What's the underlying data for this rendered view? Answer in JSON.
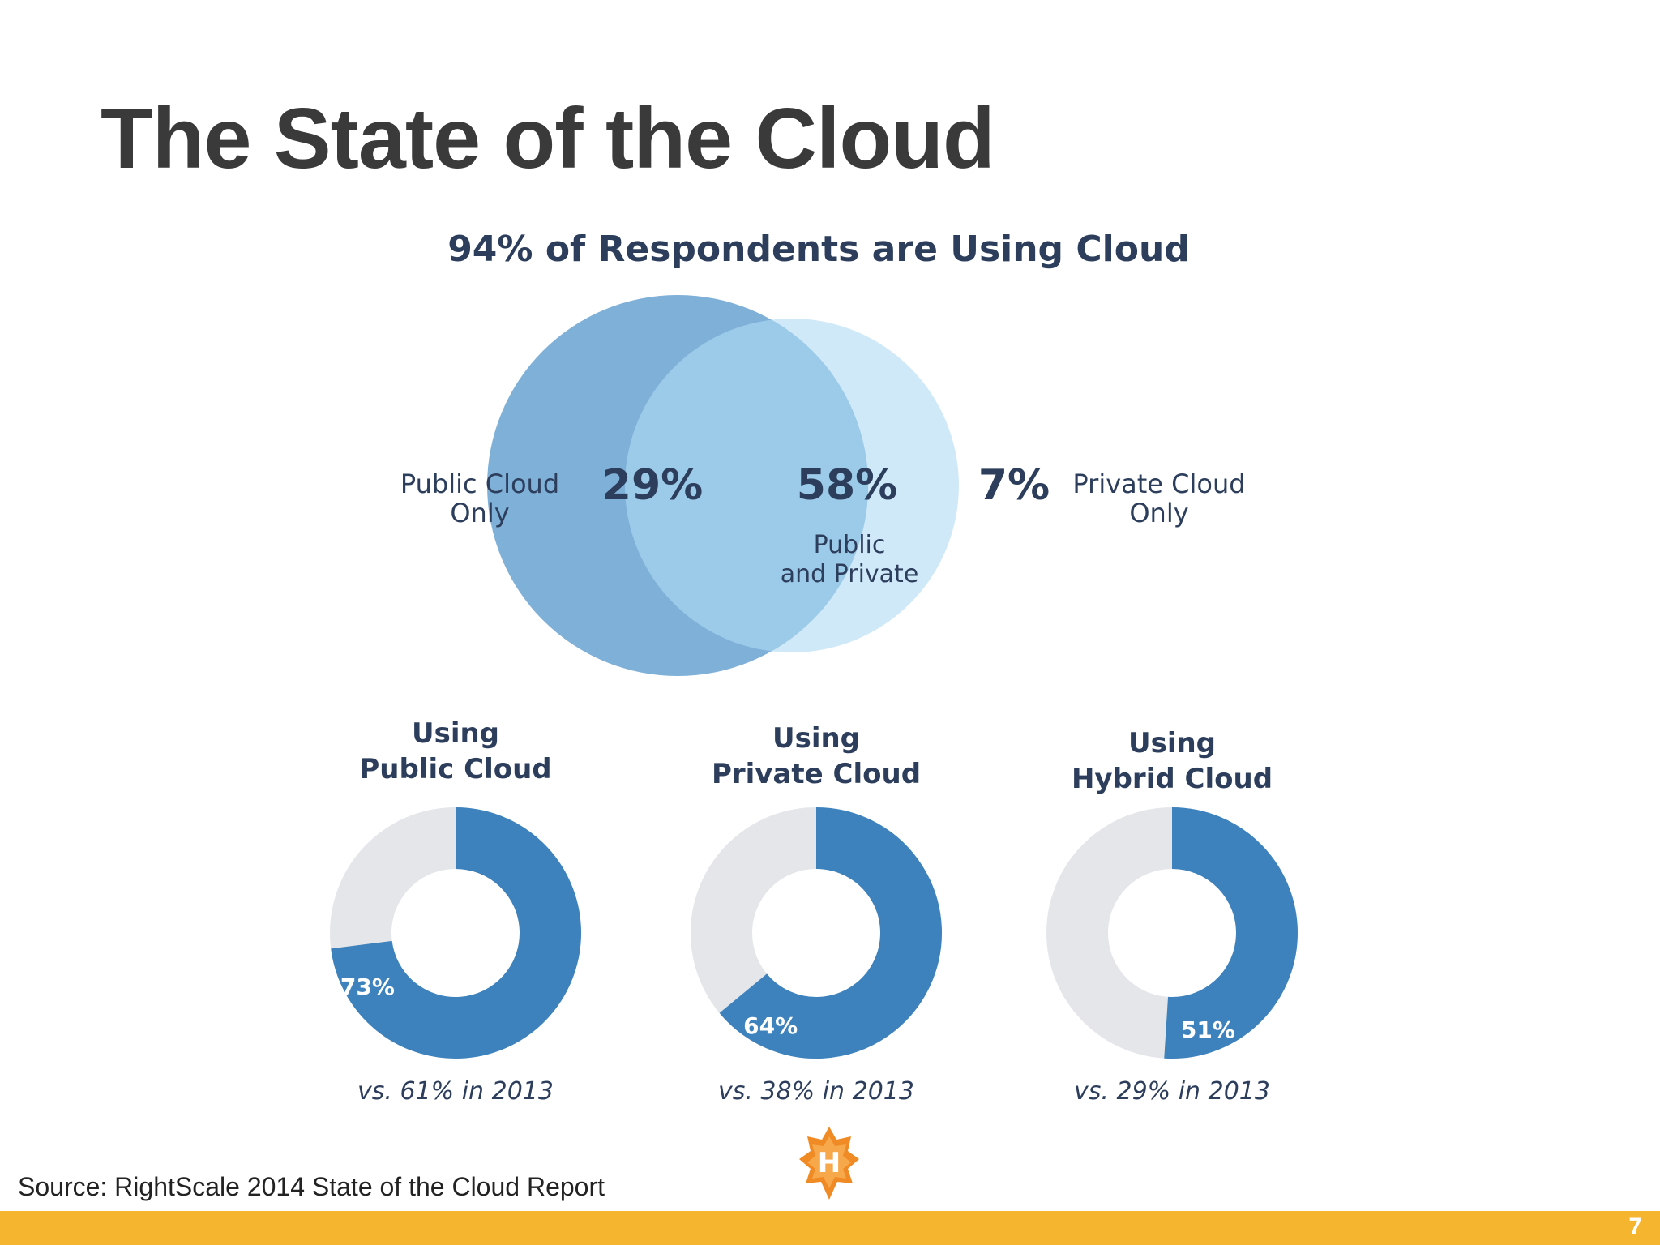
{
  "slide": {
    "title": "The State of the Cloud",
    "source": "Source: RightScale 2014 State of the Cloud Report",
    "page_number": "7",
    "logo_letter": "H"
  },
  "colors": {
    "title_text": "#3a3a3a",
    "figure_text": "#2c3e5c",
    "public_circle": "#7fb0d8",
    "private_circle": "#cfe9f8",
    "overlap": "#9ccbe9",
    "donut_fill": "#3d82bc",
    "donut_track": "#e4e6ea",
    "footer_bar": "#f5b52e",
    "logo_orange": "#f08a24"
  },
  "chart_data": [
    {
      "type": "venn",
      "title": "94% of Respondents are Using Cloud",
      "sets": [
        {
          "label_line1": "Public Cloud",
          "label_line2": "Only",
          "value": 29,
          "value_label": "29%"
        },
        {
          "label_line1": "Public",
          "label_line2": "and Private",
          "value": 58,
          "value_label": "58%"
        },
        {
          "label_line1": "Private Cloud",
          "label_line2": "Only",
          "value": 7,
          "value_label": "7%"
        }
      ]
    },
    {
      "type": "donut",
      "title_line1": "Using",
      "title_line2": "Public Cloud",
      "value": 73,
      "value_label": "73%",
      "note": "vs. 61% in 2013"
    },
    {
      "type": "donut",
      "title_line1": "Using",
      "title_line2": "Private Cloud",
      "value": 64,
      "value_label": "64%",
      "note": "vs. 38% in 2013"
    },
    {
      "type": "donut",
      "title_line1": "Using",
      "title_line2": "Hybrid Cloud",
      "value": 51,
      "value_label": "51%",
      "note": "vs. 29% in 2013"
    }
  ]
}
